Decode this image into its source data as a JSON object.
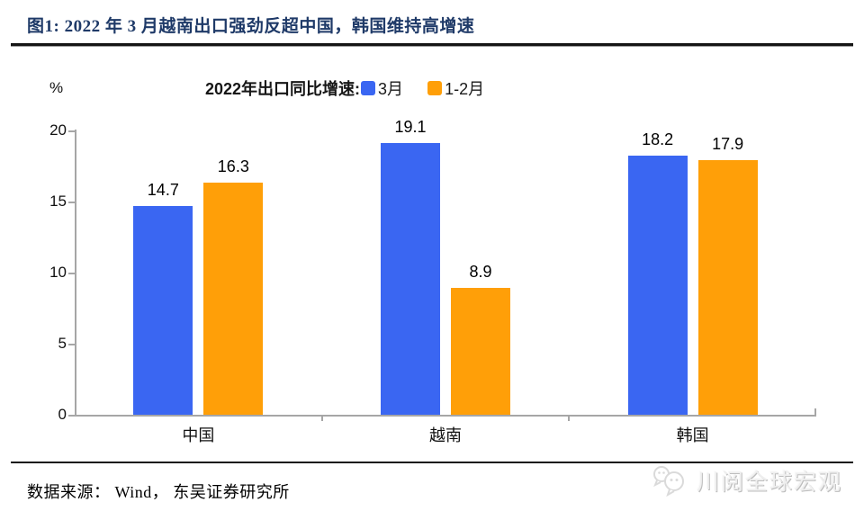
{
  "header": {
    "title": "图1:  2022 年 3 月越南出口强劲反超中国，韩国维持高增速"
  },
  "chart_data": {
    "type": "bar",
    "title": "2022年出口同比增速:",
    "ylabel": "%",
    "categories": [
      "中国",
      "越南",
      "韩国"
    ],
    "series": [
      {
        "name": "3月",
        "color": "#3A66F2",
        "values": [
          14.7,
          19.1,
          18.2
        ]
      },
      {
        "name": "1-2月",
        "color": "#FF9F08",
        "values": [
          16.3,
          8.9,
          17.9
        ]
      }
    ],
    "ylim": [
      0,
      20
    ],
    "yticks": [
      0,
      5,
      10,
      15,
      20
    ],
    "grid": false,
    "legend_position": "top",
    "axis_color": "#a6a6a6",
    "bar_value_labels": [
      [
        "14.7",
        "19.1",
        "18.2"
      ],
      [
        "16.3",
        "8.9",
        "17.9"
      ]
    ]
  },
  "footer": {
    "source": "数据来源： Wind， 东吴证券研究所"
  },
  "watermark": {
    "label": "川阅全球宏观",
    "icon": "wechat-icon"
  }
}
